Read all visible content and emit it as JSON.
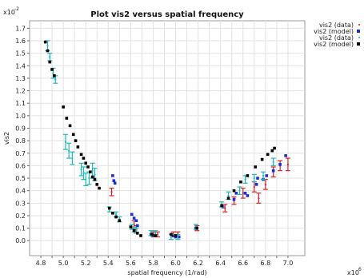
{
  "chart_data": {
    "type": "scatter",
    "title": "Plot vis2 versus spatial frequency",
    "xlabel": "spatial frequency (1/rad)",
    "ylabel": "vis2",
    "x_exponent_label": "x10",
    "x_exponent_power": "6",
    "y_exponent_label": "x10",
    "y_exponent_power": "-2",
    "xlim": [
      4.7,
      7.15
    ],
    "ylim": [
      -0.12,
      1.76
    ],
    "x_ticks": [
      "4.8",
      "4.9",
      "5.0",
      "5.1",
      "5.2",
      "5.3",
      "5.4",
      "5.5",
      "5.6",
      "5.7",
      "5.8",
      "5.9",
      "6.0",
      "6.1",
      "6.2",
      "6.3",
      "6.4",
      "6.5",
      "6.6",
      "6.7",
      "6.8",
      "6.9",
      "7.0"
    ],
    "y_ticks": [
      "0.0",
      "0.1",
      "0.2",
      "0.3",
      "0.4",
      "0.5",
      "0.6",
      "0.7",
      "0.8",
      "0.9",
      "1.0",
      "1.1",
      "1.2",
      "1.3",
      "1.4",
      "1.5",
      "1.6",
      "1.7"
    ],
    "grid": true,
    "legend_position": "right",
    "series": [
      {
        "name": "vis2 (data)",
        "color": "#e02020",
        "marker": "errorbar",
        "points": [
          [
            5.43,
            0.39,
            0.03
          ],
          [
            5.63,
            0.13,
            0.03
          ],
          [
            5.65,
            0.09,
            0.03
          ],
          [
            5.8,
            0.05,
            0.02
          ],
          [
            5.84,
            0.05,
            0.02
          ],
          [
            5.98,
            0.05,
            0.02
          ],
          [
            6.02,
            0.05,
            0.02
          ],
          [
            6.19,
            0.1,
            0.02
          ],
          [
            6.44,
            0.26,
            0.03
          ],
          [
            6.52,
            0.32,
            0.03
          ],
          [
            6.6,
            0.38,
            0.04
          ],
          [
            6.7,
            0.43,
            0.04
          ],
          [
            6.74,
            0.34,
            0.04
          ],
          [
            6.8,
            0.45,
            0.04
          ],
          [
            6.87,
            0.55,
            0.04
          ],
          [
            6.93,
            0.6,
            0.04
          ],
          [
            7.0,
            0.61,
            0.05
          ]
        ]
      },
      {
        "name": "vis2 (model)",
        "color": "#1a2cd8",
        "marker": "dot",
        "points": [
          [
            5.44,
            0.52
          ],
          [
            5.45,
            0.48
          ],
          [
            5.46,
            0.46
          ],
          [
            5.61,
            0.21
          ],
          [
            5.63,
            0.18
          ],
          [
            5.65,
            0.16
          ],
          [
            5.66,
            0.12
          ],
          [
            5.78,
            0.05
          ],
          [
            5.8,
            0.04
          ],
          [
            5.97,
            0.04
          ],
          [
            6.0,
            0.03
          ],
          [
            6.03,
            0.03
          ],
          [
            6.18,
            0.1
          ],
          [
            6.42,
            0.27
          ],
          [
            6.52,
            0.33
          ],
          [
            6.54,
            0.38
          ],
          [
            6.62,
            0.38
          ],
          [
            6.64,
            0.36
          ],
          [
            6.72,
            0.45
          ],
          [
            6.73,
            0.5
          ],
          [
            6.78,
            0.49
          ],
          [
            6.81,
            0.52
          ],
          [
            6.87,
            0.56
          ],
          [
            6.93,
            0.61
          ],
          [
            6.98,
            0.68
          ]
        ]
      },
      {
        "name": "vis2 (data)",
        "color": "#1fb7b7",
        "marker": "errorbar",
        "points": [
          [
            4.86,
            1.56,
            0.04
          ],
          [
            4.88,
            1.47,
            0.03
          ],
          [
            4.91,
            1.34,
            0.04
          ],
          [
            4.93,
            1.29,
            0.03
          ],
          [
            5.02,
            0.79,
            0.06
          ],
          [
            5.05,
            0.72,
            0.06
          ],
          [
            5.08,
            0.66,
            0.05
          ],
          [
            5.16,
            0.57,
            0.05
          ],
          [
            5.18,
            0.54,
            0.05
          ],
          [
            5.2,
            0.49,
            0.05
          ],
          [
            5.23,
            0.5,
            0.05
          ],
          [
            5.26,
            0.56,
            0.06
          ],
          [
            5.28,
            0.53,
            0.05
          ],
          [
            5.41,
            0.25,
            0.02
          ],
          [
            5.47,
            0.21,
            0.02
          ],
          [
            5.5,
            0.17,
            0.02
          ],
          [
            5.61,
            0.11,
            0.02
          ],
          [
            5.63,
            0.09,
            0.02
          ],
          [
            5.65,
            0.08,
            0.02
          ],
          [
            5.78,
            0.06,
            0.02
          ],
          [
            5.82,
            0.06,
            0.02
          ],
          [
            5.96,
            0.03,
            0.02
          ],
          [
            6.02,
            0.03,
            0.02
          ],
          [
            6.18,
            0.11,
            0.02
          ],
          [
            6.41,
            0.29,
            0.02
          ],
          [
            6.47,
            0.36,
            0.03
          ],
          [
            6.57,
            0.4,
            0.03
          ],
          [
            6.62,
            0.49,
            0.03
          ],
          [
            6.7,
            0.5,
            0.03
          ],
          [
            6.78,
            0.52,
            0.03
          ],
          [
            6.87,
            0.63,
            0.03
          ]
        ]
      },
      {
        "name": "vis2 (model)",
        "color": "#000000",
        "marker": "dot",
        "points": [
          [
            4.84,
            1.59
          ],
          [
            4.86,
            1.52
          ],
          [
            4.88,
            1.43
          ],
          [
            4.9,
            1.37
          ],
          [
            4.92,
            1.32
          ],
          [
            5.0,
            1.07
          ],
          [
            5.03,
            0.98
          ],
          [
            5.06,
            0.92
          ],
          [
            5.09,
            0.85
          ],
          [
            5.11,
            0.8
          ],
          [
            5.13,
            0.75
          ],
          [
            5.16,
            0.69
          ],
          [
            5.18,
            0.66
          ],
          [
            5.2,
            0.62
          ],
          [
            5.22,
            0.59
          ],
          [
            5.24,
            0.55
          ],
          [
            5.26,
            0.51
          ],
          [
            5.28,
            0.49
          ],
          [
            5.3,
            0.45
          ],
          [
            5.32,
            0.42
          ],
          [
            5.41,
            0.26
          ],
          [
            5.44,
            0.22
          ],
          [
            5.47,
            0.19
          ],
          [
            5.5,
            0.16
          ],
          [
            5.6,
            0.11
          ],
          [
            5.63,
            0.08
          ],
          [
            5.66,
            0.06
          ],
          [
            5.69,
            0.04
          ],
          [
            5.79,
            0.05
          ],
          [
            5.82,
            0.04
          ],
          [
            5.96,
            0.05
          ],
          [
            6.0,
            0.04
          ],
          [
            6.19,
            0.1
          ],
          [
            6.41,
            0.28
          ],
          [
            6.47,
            0.34
          ],
          [
            6.52,
            0.4
          ],
          [
            6.58,
            0.47
          ],
          [
            6.64,
            0.52
          ],
          [
            6.71,
            0.59
          ],
          [
            6.77,
            0.65
          ],
          [
            6.82,
            0.69
          ],
          [
            6.86,
            0.72
          ],
          [
            6.88,
            0.74
          ]
        ]
      }
    ]
  }
}
